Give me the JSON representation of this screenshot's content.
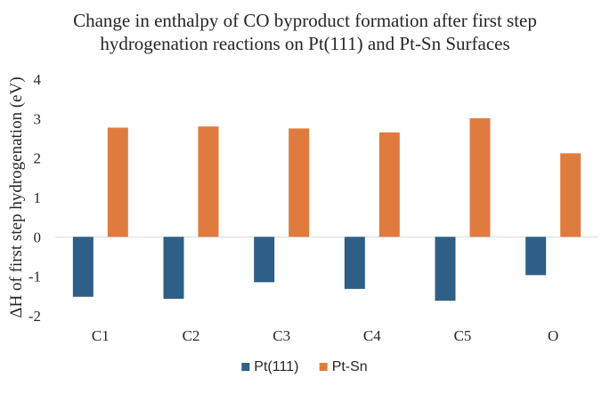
{
  "chart_data": {
    "type": "bar",
    "title_lines": [
      "Change in enthalpy of CO byproduct formation after first step",
      "hydrogenation reactions on Pt(111) and Pt-Sn Surfaces"
    ],
    "xlabel": "",
    "ylabel": "ΔH of first step hydrogenation (eV)",
    "categories": [
      "C1",
      "C2",
      "C3",
      "C4",
      "C5",
      "O"
    ],
    "series": [
      {
        "name": "Pt(111)",
        "color": "#2e5f86",
        "values": [
          -1.52,
          -1.57,
          -1.15,
          -1.32,
          -1.62,
          -0.97
        ]
      },
      {
        "name": "Pt-Sn",
        "color": "#e07b3f",
        "values": [
          2.77,
          2.8,
          2.75,
          2.65,
          3.01,
          2.12
        ]
      }
    ],
    "ylim": [
      -2,
      4
    ],
    "yticks": [
      -2,
      -1,
      0,
      1,
      2,
      3,
      4
    ],
    "grid": false,
    "legend_position": "bottom-center"
  }
}
